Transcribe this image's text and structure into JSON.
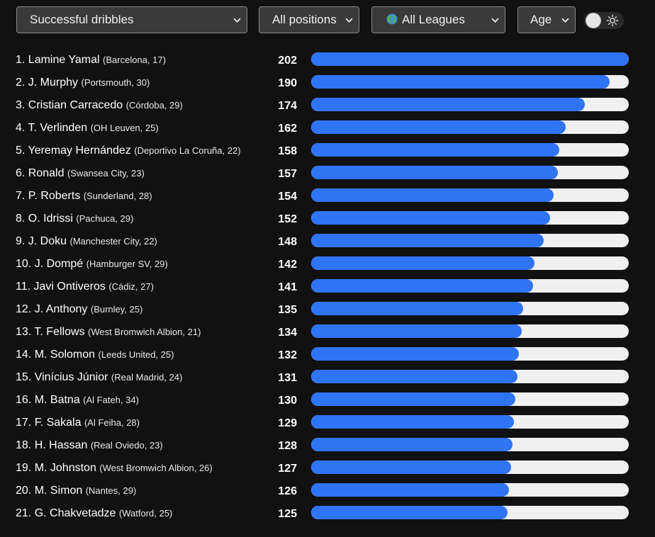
{
  "filters": {
    "stat": "Successful dribbles",
    "position": "All positions",
    "league": "All Leagues",
    "league_icon": "globe-icon",
    "age": "Age"
  },
  "theme_toggle": {
    "icons": [
      "knob",
      "sun-icon"
    ]
  },
  "colors": {
    "background": "#111111",
    "bar_fill": "#2f74f5",
    "bar_track": "#f0f0f0"
  },
  "bar_max": 202,
  "rows": [
    {
      "label": "1. Lamine Yamal",
      "meta": "(Barcelona, 17)",
      "value": 202
    },
    {
      "label": "2. J. Murphy",
      "meta": "(Portsmouth, 30)",
      "value": 190
    },
    {
      "label": "3. Cristian Carracedo",
      "meta": "(Córdoba, 29)",
      "value": 174
    },
    {
      "label": "4. T. Verlinden",
      "meta": "(OH Leuven, 25)",
      "value": 162
    },
    {
      "label": "5. Yeremay Hernández",
      "meta": "(Deportivo La Coruña, 22)",
      "value": 158
    },
    {
      "label": "6. Ronald",
      "meta": "(Swansea City, 23)",
      "value": 157
    },
    {
      "label": "7. P. Roberts",
      "meta": "(Sunderland, 28)",
      "value": 154
    },
    {
      "label": "8. O. Idrissi",
      "meta": "(Pachuca, 29)",
      "value": 152
    },
    {
      "label": "9. J. Doku",
      "meta": "(Manchester City, 22)",
      "value": 148
    },
    {
      "label": "10. J. Dompé",
      "meta": "(Hamburger SV, 29)",
      "value": 142
    },
    {
      "label": "11. Javi Ontiveros",
      "meta": "(Cádiz, 27)",
      "value": 141
    },
    {
      "label": "12. J. Anthony",
      "meta": "(Burnley, 25)",
      "value": 135
    },
    {
      "label": "13. T. Fellows",
      "meta": "(West Bromwich Albion, 21)",
      "value": 134
    },
    {
      "label": "14. M. Solomon",
      "meta": "(Leeds United, 25)",
      "value": 132
    },
    {
      "label": "15. Vinícius Júnior",
      "meta": "(Real Madrid, 24)",
      "value": 131
    },
    {
      "label": "16. M. Batna",
      "meta": "(Al Fateh, 34)",
      "value": 130
    },
    {
      "label": "17. F. Sakala",
      "meta": "(Al Feiha, 28)",
      "value": 129
    },
    {
      "label": "18. H. Hassan",
      "meta": "(Real Oviedo, 23)",
      "value": 128
    },
    {
      "label": "19. M. Johnston",
      "meta": "(West Bromwich Albion, 26)",
      "value": 127
    },
    {
      "label": "20. M. Simon",
      "meta": "(Nantes, 29)",
      "value": 126
    },
    {
      "label": "21. G. Chakvetadze",
      "meta": "(Watford, 25)",
      "value": 125
    }
  ]
}
